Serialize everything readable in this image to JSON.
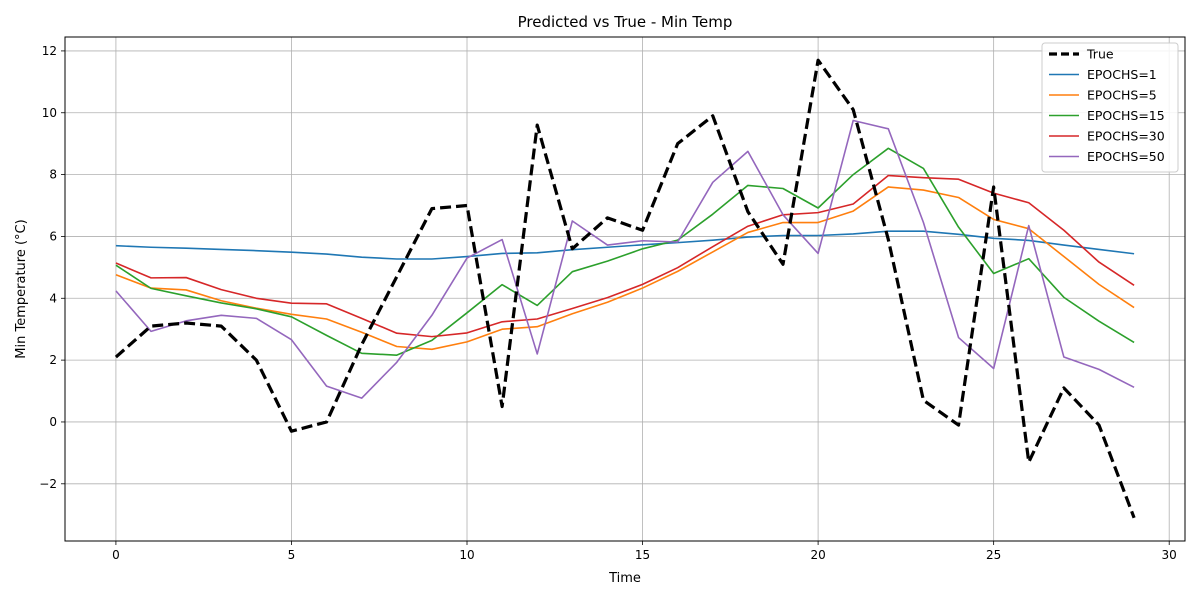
{
  "chart_data": {
    "type": "line",
    "title": "Predicted vs True - Min Temp",
    "xlabel": "Time",
    "ylabel": "Min Temperature (°C)",
    "xlim": [
      -1.45,
      30.45
    ],
    "ylim": [
      -3.85,
      12.45
    ],
    "xticks": [
      0,
      5,
      10,
      15,
      20,
      25,
      30
    ],
    "yticks": [
      -2,
      0,
      2,
      4,
      6,
      8,
      10,
      12
    ],
    "ytick_labels": [
      "−2",
      "0",
      "2",
      "4",
      "6",
      "8",
      "10",
      "12"
    ],
    "grid": true,
    "legend_position": "top-right",
    "x": [
      0,
      1,
      2,
      3,
      4,
      5,
      6,
      7,
      8,
      9,
      10,
      11,
      12,
      13,
      14,
      15,
      16,
      17,
      18,
      19,
      20,
      21,
      22,
      23,
      24,
      25,
      26,
      27,
      28,
      29
    ],
    "series": [
      {
        "name": "True",
        "color": "#000000",
        "style": "dashed",
        "values": [
          2.1,
          3.1,
          3.2,
          3.1,
          2.0,
          -0.3,
          0.0,
          2.5,
          4.7,
          6.9,
          7.0,
          0.5,
          9.6,
          5.6,
          6.6,
          6.2,
          9.0,
          9.9,
          6.8,
          5.1,
          11.7,
          10.1,
          5.9,
          0.7,
          -0.1,
          7.6,
          -1.3,
          1.1,
          -0.1,
          -3.1
        ]
      },
      {
        "name": "EPOCHS=1",
        "color": "#1f77b4",
        "style": "solid",
        "values": [
          5.7,
          5.65,
          5.62,
          5.58,
          5.54,
          5.49,
          5.43,
          5.33,
          5.27,
          5.27,
          5.35,
          5.45,
          5.47,
          5.57,
          5.65,
          5.73,
          5.8,
          5.88,
          5.98,
          6.03,
          6.03,
          6.08,
          6.17,
          6.17,
          6.07,
          5.94,
          5.87,
          5.72,
          5.58,
          5.44
        ]
      },
      {
        "name": "EPOCHS=5",
        "color": "#ff7f0e",
        "style": "solid",
        "values": [
          4.76,
          4.33,
          4.27,
          3.92,
          3.68,
          3.48,
          3.33,
          2.9,
          2.44,
          2.35,
          2.59,
          3.0,
          3.08,
          3.5,
          3.87,
          4.33,
          4.87,
          5.5,
          6.13,
          6.45,
          6.45,
          6.82,
          7.6,
          7.5,
          7.26,
          6.55,
          6.25,
          5.35,
          4.45,
          3.7
        ]
      },
      {
        "name": "EPOCHS=15",
        "color": "#2ca02c",
        "style": "solid",
        "values": [
          5.07,
          4.32,
          4.08,
          3.85,
          3.66,
          3.4,
          2.8,
          2.22,
          2.16,
          2.64,
          3.53,
          4.44,
          3.77,
          4.86,
          5.2,
          5.6,
          5.88,
          6.72,
          7.65,
          7.55,
          6.92,
          8.0,
          8.85,
          8.2,
          6.3,
          4.8,
          5.28,
          4.03,
          3.26,
          2.57
        ]
      },
      {
        "name": "EPOCHS=30",
        "color": "#d62728",
        "style": "solid",
        "values": [
          5.14,
          4.66,
          4.67,
          4.28,
          4.0,
          3.84,
          3.82,
          3.35,
          2.87,
          2.76,
          2.88,
          3.24,
          3.33,
          3.67,
          4.02,
          4.45,
          4.99,
          5.67,
          6.33,
          6.7,
          6.77,
          7.05,
          7.97,
          7.9,
          7.85,
          7.4,
          7.09,
          6.2,
          5.17,
          4.42
        ]
      },
      {
        "name": "EPOCHS=50",
        "color": "#9467bd",
        "style": "solid",
        "values": [
          4.24,
          2.93,
          3.27,
          3.45,
          3.35,
          2.66,
          1.16,
          0.77,
          1.93,
          3.45,
          5.3,
          5.9,
          2.2,
          6.5,
          5.72,
          5.86,
          5.82,
          7.75,
          8.75,
          6.7,
          5.45,
          9.75,
          9.48,
          6.45,
          2.73,
          1.73,
          6.35,
          2.1,
          1.7,
          1.12
        ]
      }
    ]
  }
}
